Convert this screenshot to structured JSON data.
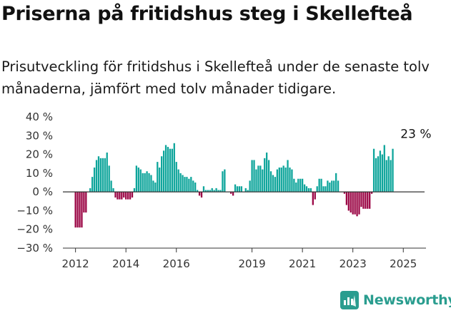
{
  "header": {
    "title": "Priserna på fritidshus steg i Skellefteå",
    "subtitle": "Prisutveckling för fritidshus i Skellefteå under de senaste tolv månaderna, jämfört med tolv månader tidigare."
  },
  "brand": {
    "name": "Newsworthy",
    "color": "#2a9d8f"
  },
  "chart_data": {
    "type": "bar",
    "title": "",
    "xlabel": "",
    "ylabel": "",
    "y_unit": "%",
    "ylim": [
      -30,
      40
    ],
    "y_ticks": [
      {
        "value": 40,
        "label": "40 %"
      },
      {
        "value": 30,
        "label": "30 %"
      },
      {
        "value": 20,
        "label": "20 %"
      },
      {
        "value": 10,
        "label": "10 %"
      },
      {
        "value": 0,
        "label": "0 %"
      },
      {
        "value": -10,
        "label": "−10 %"
      },
      {
        "value": -20,
        "label": "−20 %"
      },
      {
        "value": -30,
        "label": "−30 %"
      }
    ],
    "x_ticks": [
      {
        "value": 2012,
        "label": "2012"
      },
      {
        "value": 2014,
        "label": "2014"
      },
      {
        "value": 2016,
        "label": "2016"
      },
      {
        "value": 2019,
        "label": "2019"
      },
      {
        "value": 2021,
        "label": "2021"
      },
      {
        "value": 2023,
        "label": "2023"
      },
      {
        "value": 2025,
        "label": "2025"
      }
    ],
    "colors": {
      "positive": "#0ea59b",
      "negative": "#9b0645"
    },
    "grid": false,
    "annotation": {
      "label": "23 %",
      "x": 2025.5,
      "y": 23
    },
    "series": [
      {
        "segments": [
          {
            "start": 2012.0,
            "values": [
              -19,
              -19,
              -19,
              -19,
              -11,
              -11,
              0,
              2,
              8,
              13,
              17,
              19,
              18,
              18,
              18,
              21,
              14,
              6,
              2,
              -3,
              -4,
              -4,
              -4,
              -3,
              -4,
              -4,
              -4,
              -3,
              2,
              14,
              13,
              12,
              10,
              10,
              11,
              10,
              9,
              6,
              5,
              16,
              13,
              19,
              22,
              25,
              24,
              23,
              23,
              26,
              16,
              12,
              10,
              9,
              8,
              8,
              7,
              8,
              6,
              5,
              1,
              -2,
              -3,
              3,
              1,
              1,
              1,
              2,
              1,
              2,
              1,
              1,
              11,
              12,
              0,
              0,
              -1,
              -2,
              4,
              3,
              3,
              3,
              0,
              2,
              1,
              6,
              17,
              17,
              12,
              14,
              14,
              12,
              18,
              21,
              17,
              11,
              9,
              8,
              12,
              13,
              13,
              14,
              13,
              17,
              13,
              12,
              7,
              5,
              7,
              7,
              7,
              4,
              3,
              2,
              2,
              -7,
              -4,
              3,
              7,
              7,
              3,
              3,
              6,
              5,
              6,
              6,
              10,
              6,
              0,
              0,
              -1,
              -7,
              -10,
              -11,
              -12,
              -12,
              -13,
              -12,
              -8,
              -9,
              -9,
              -9,
              -9,
              -1,
              23,
              18,
              19,
              22,
              20,
              25,
              17,
              19,
              17,
              23
            ]
          }
        ]
      }
    ]
  }
}
